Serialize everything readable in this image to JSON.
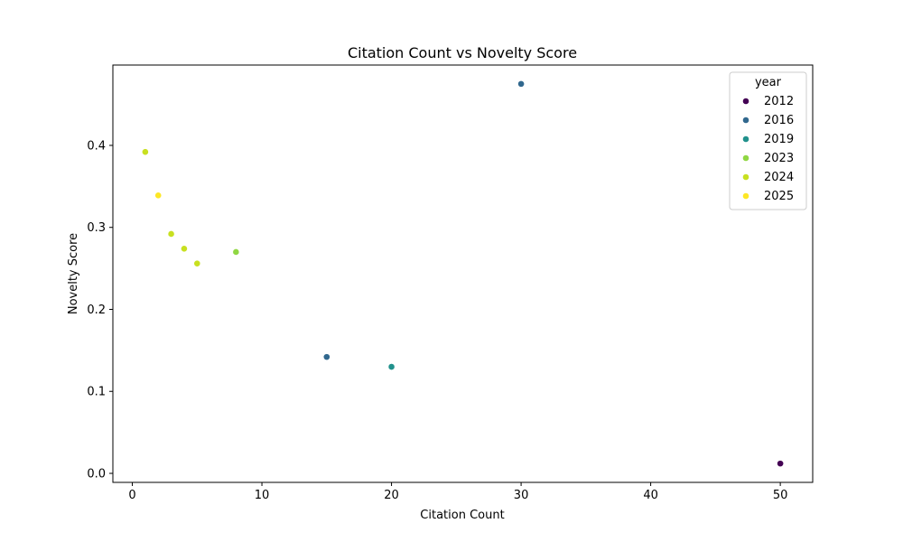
{
  "chart_data": {
    "type": "scatter",
    "title": "Citation Count vs Novelty Score",
    "xlabel": "Citation Count",
    "ylabel": "Novelty Score",
    "xlim": [
      -1.5,
      52.5
    ],
    "ylim": [
      -0.011,
      0.498
    ],
    "xticks": [
      0,
      10,
      20,
      30,
      40,
      50
    ],
    "yticks": [
      0.0,
      0.1,
      0.2,
      0.3,
      0.4
    ],
    "xtick_labels": [
      "0",
      "10",
      "20",
      "30",
      "40",
      "50"
    ],
    "ytick_labels": [
      "0.0",
      "0.1",
      "0.2",
      "0.3",
      "0.4"
    ],
    "grid": false,
    "legend": {
      "title": "year",
      "placement": "top-right",
      "entries": [
        {
          "label": "2012",
          "color": "#440154"
        },
        {
          "label": "2016",
          "color": "#31688e"
        },
        {
          "label": "2019",
          "color": "#21918c"
        },
        {
          "label": "2023",
          "color": "#90d743"
        },
        {
          "label": "2024",
          "color": "#c8e020"
        },
        {
          "label": "2025",
          "color": "#fde725"
        }
      ]
    },
    "points": [
      {
        "x": 50,
        "y": 0.012,
        "year": "2012"
      },
      {
        "x": 30,
        "y": 0.475,
        "year": "2016"
      },
      {
        "x": 15,
        "y": 0.142,
        "year": "2016"
      },
      {
        "x": 20,
        "y": 0.13,
        "year": "2019"
      },
      {
        "x": 8,
        "y": 0.27,
        "year": "2023"
      },
      {
        "x": 1,
        "y": 0.392,
        "year": "2024"
      },
      {
        "x": 3,
        "y": 0.292,
        "year": "2024"
      },
      {
        "x": 4,
        "y": 0.274,
        "year": "2024"
      },
      {
        "x": 5,
        "y": 0.256,
        "year": "2024"
      },
      {
        "x": 2,
        "y": 0.339,
        "year": "2025"
      }
    ]
  }
}
